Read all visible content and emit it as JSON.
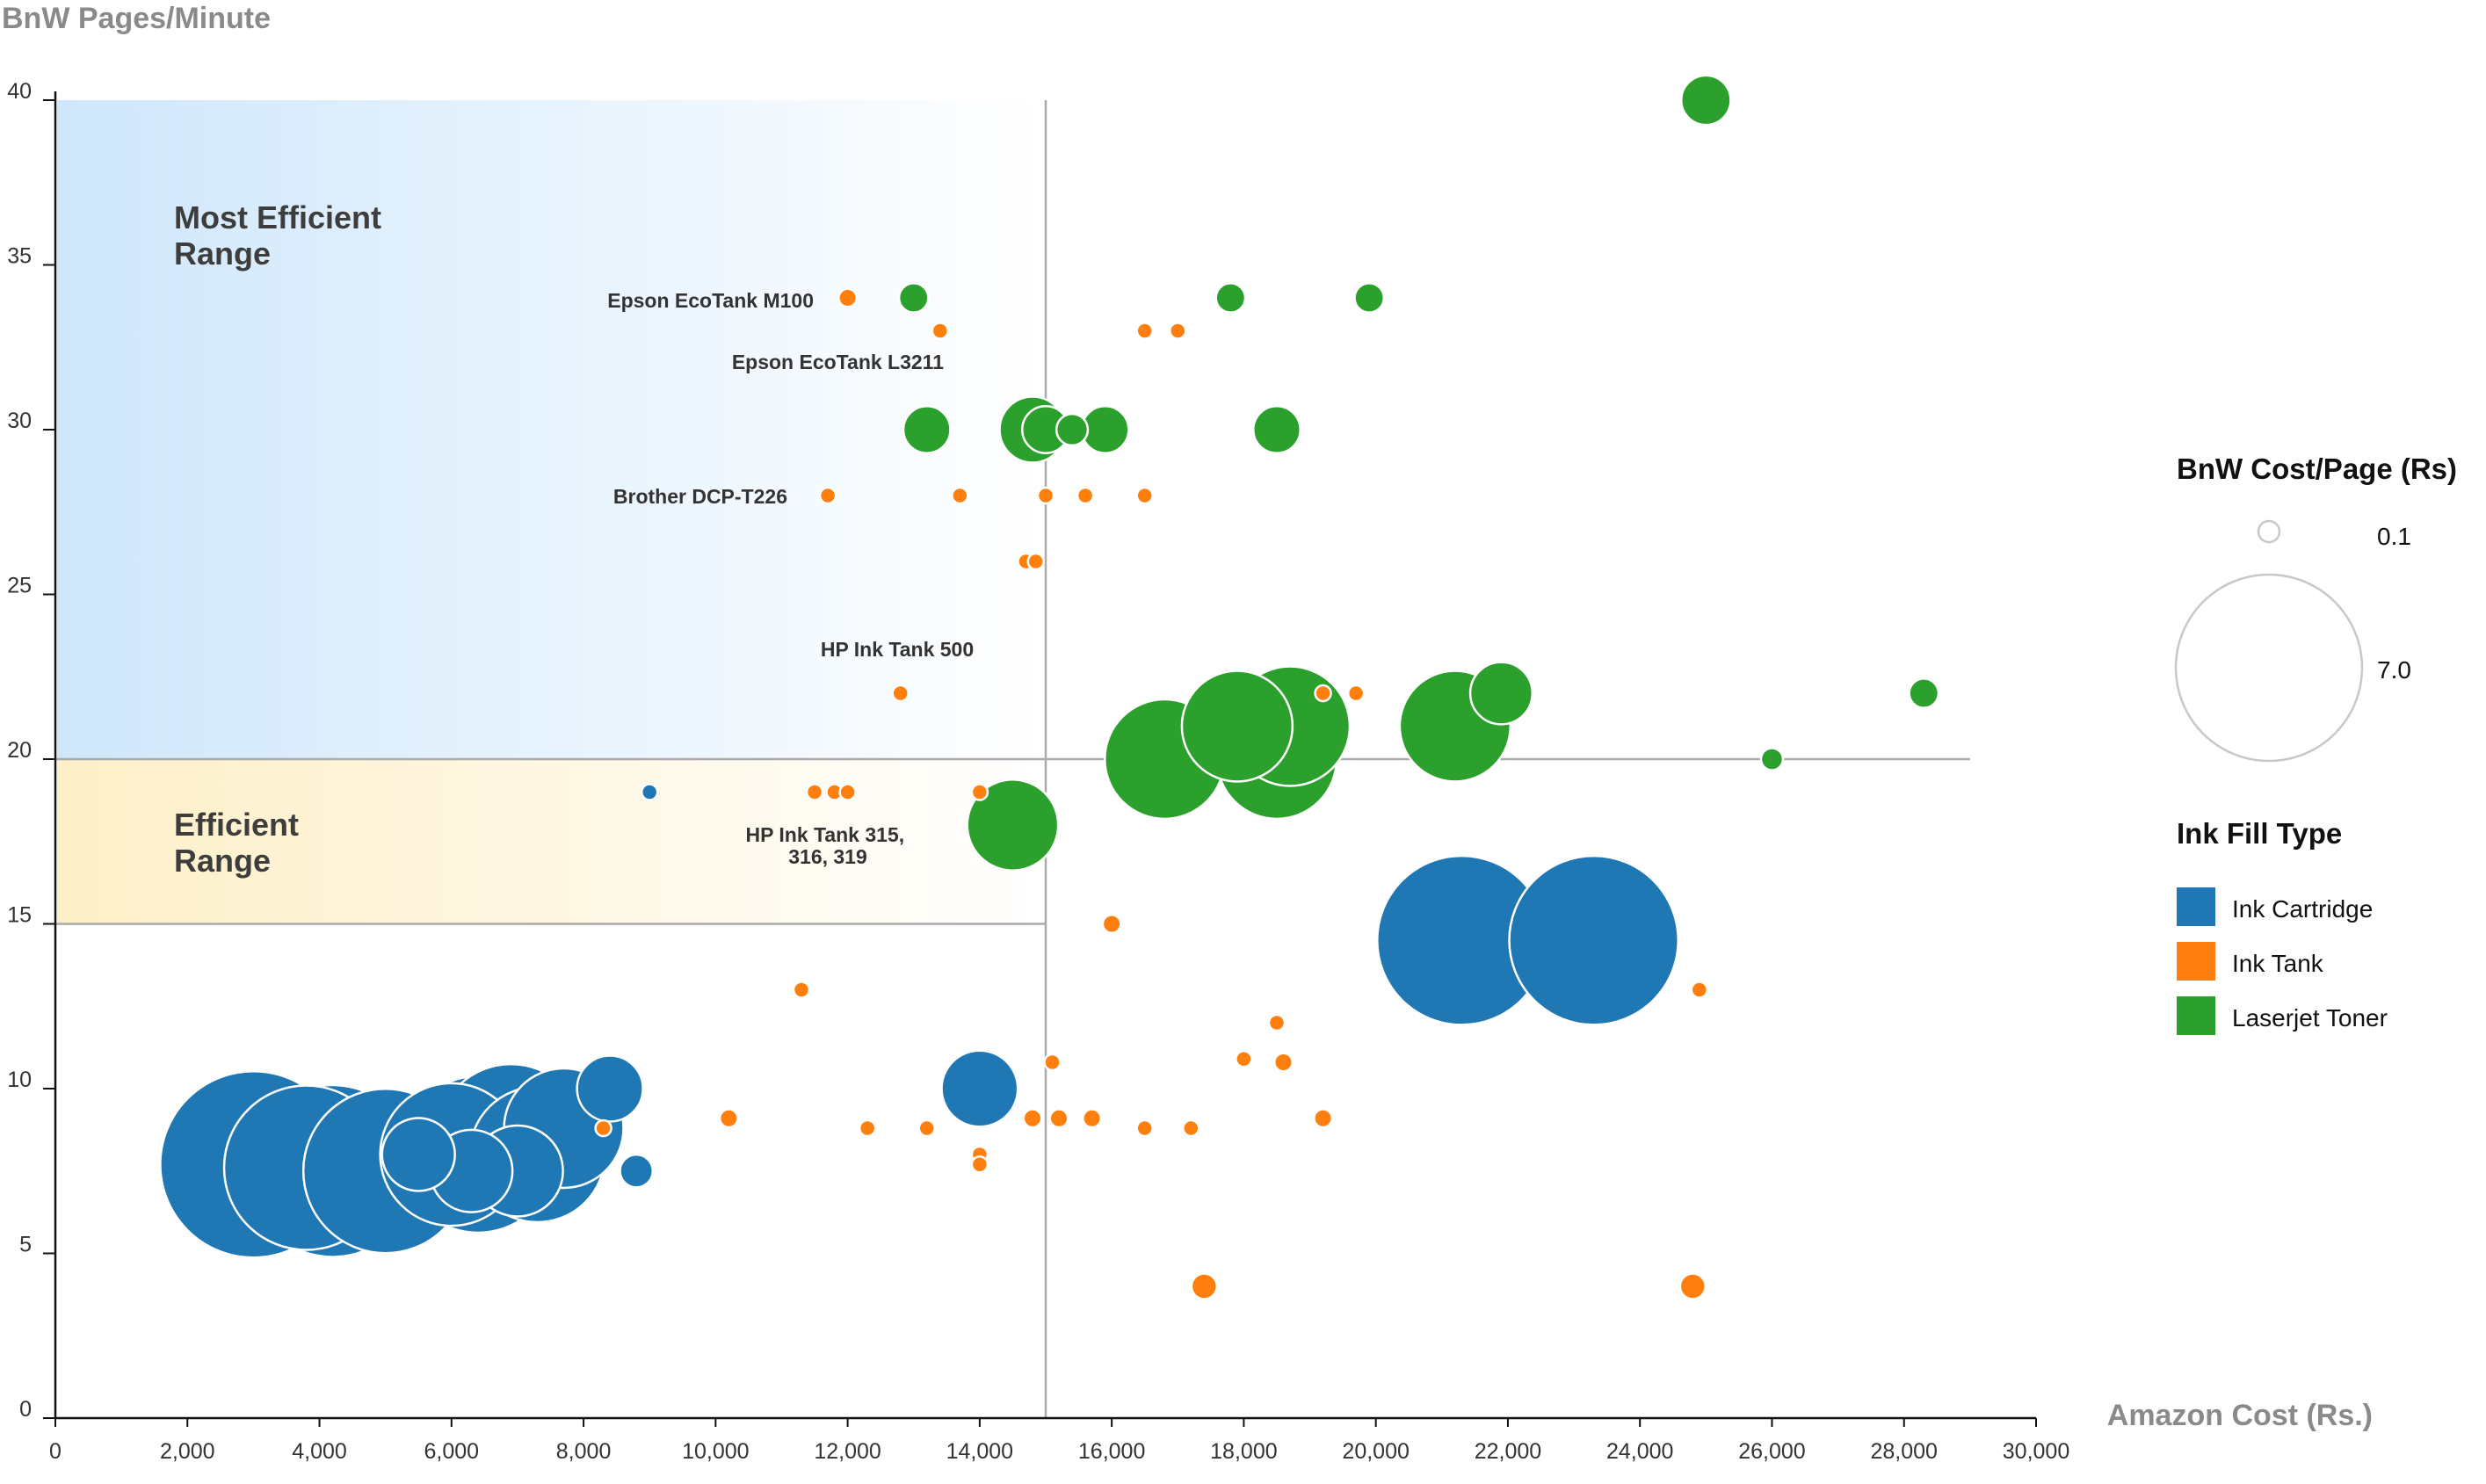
{
  "chart_data": {
    "type": "scatter",
    "subtype": "bubble",
    "ylabel": "BnW Pages/Minute",
    "xlabel": "Amazon Cost (Rs.)",
    "xlim": [
      0,
      30000
    ],
    "ylim": [
      0,
      40
    ],
    "x_ticks": [
      "0",
      "2,000",
      "4,000",
      "6,000",
      "8,000",
      "10,000",
      "12,000",
      "14,000",
      "16,000",
      "18,000",
      "20,000",
      "22,000",
      "24,000",
      "26,000",
      "28,000",
      "30,000"
    ],
    "y_ticks": [
      "0",
      "5",
      "10",
      "15",
      "20",
      "25",
      "30",
      "35",
      "40"
    ],
    "grid": false,
    "colors": {
      "Ink Cartridge": "#1f77b4",
      "Ink Tank": "#ff7f0e",
      "Laserjet Toner": "#2ca02c"
    },
    "regions": [
      {
        "label": "Most Efficient Range",
        "x": [
          0,
          15000
        ],
        "y": [
          20,
          40
        ],
        "color": "#cfe8fb"
      },
      {
        "label": "Efficient Range",
        "x": [
          0,
          15000
        ],
        "y": [
          15,
          20
        ],
        "color": "#fdf0cc"
      }
    ],
    "reference_lines": {
      "x": 15000,
      "y_max": 40,
      "y": 20,
      "x_max": 29000
    },
    "annotations": [
      {
        "text": "Epson EcoTank M100",
        "x": 12000,
        "y": 34
      },
      {
        "text": "Epson EcoTank L3211",
        "x": 13300,
        "y": 33
      },
      {
        "text": "Brother DCP-T226",
        "x": 11700,
        "y": 28
      },
      {
        "text": "HP Ink Tank 500",
        "x": 12800,
        "y": 22
      },
      {
        "text": "HP Ink Tank 315,",
        "text2": "316, 319",
        "x": 11800,
        "y": 19
      }
    ],
    "size_legend": {
      "title": "BnW Cost/Page (Rs)",
      "entries": [
        {
          "label": "0.1",
          "value": 0.1
        },
        {
          "label": "7.0",
          "value": 7.0
        }
      ]
    },
    "legend_title": "Ink Fill Type",
    "legend_position": "right",
    "series": [
      {
        "name": "Ink Cartridge",
        "points": [
          {
            "x": 3000,
            "y": 7.7,
            "size": 7.0
          },
          {
            "x": 3800,
            "y": 7.6,
            "size": 5.5
          },
          {
            "x": 4200,
            "y": 7.5,
            "size": 6.0
          },
          {
            "x": 5000,
            "y": 7.5,
            "size": 5.5
          },
          {
            "x": 6000,
            "y": 8.0,
            "size": 4.2
          },
          {
            "x": 6400,
            "y": 8.0,
            "size": 5.0
          },
          {
            "x": 6900,
            "y": 8.5,
            "size": 4.5
          },
          {
            "x": 7300,
            "y": 8.0,
            "size": 3.8
          },
          {
            "x": 7700,
            "y": 8.8,
            "size": 3.0
          },
          {
            "x": 7000,
            "y": 7.5,
            "size": 1.8
          },
          {
            "x": 6300,
            "y": 7.5,
            "size": 1.5
          },
          {
            "x": 5500,
            "y": 8.0,
            "size": 1.2
          },
          {
            "x": 8400,
            "y": 10.0,
            "size": 1.0
          },
          {
            "x": 8800,
            "y": 7.5,
            "size": 0.3
          },
          {
            "x": 9000,
            "y": 19.0,
            "size": 0.1
          },
          {
            "x": 14000,
            "y": 10.0,
            "size": 1.3
          },
          {
            "x": 21300,
            "y": 14.5,
            "size": 5.8
          },
          {
            "x": 23300,
            "y": 14.5,
            "size": 5.8
          }
        ]
      },
      {
        "name": "Ink Tank",
        "points": [
          {
            "x": 12000,
            "y": 34,
            "size": 0.12
          },
          {
            "x": 13400,
            "y": 33,
            "size": 0.1
          },
          {
            "x": 16500,
            "y": 33,
            "size": 0.1
          },
          {
            "x": 17000,
            "y": 33,
            "size": 0.1
          },
          {
            "x": 11700,
            "y": 28,
            "size": 0.1
          },
          {
            "x": 13700,
            "y": 28,
            "size": 0.1
          },
          {
            "x": 15000,
            "y": 28,
            "size": 0.1
          },
          {
            "x": 15600,
            "y": 28,
            "size": 0.1
          },
          {
            "x": 16500,
            "y": 28,
            "size": 0.1
          },
          {
            "x": 14700,
            "y": 26,
            "size": 0.1
          },
          {
            "x": 14850,
            "y": 26,
            "size": 0.1
          },
          {
            "x": 12800,
            "y": 22,
            "size": 0.1
          },
          {
            "x": 19200,
            "y": 22,
            "size": 0.1
          },
          {
            "x": 19700,
            "y": 22,
            "size": 0.1
          },
          {
            "x": 11500,
            "y": 19,
            "size": 0.1
          },
          {
            "x": 11800,
            "y": 19,
            "size": 0.1
          },
          {
            "x": 12000,
            "y": 19,
            "size": 0.1
          },
          {
            "x": 14000,
            "y": 19,
            "size": 0.1
          },
          {
            "x": 16000,
            "y": 15,
            "size": 0.12
          },
          {
            "x": 11300,
            "y": 13,
            "size": 0.1
          },
          {
            "x": 24900,
            "y": 13,
            "size": 0.1
          },
          {
            "x": 18500,
            "y": 12,
            "size": 0.1
          },
          {
            "x": 15100,
            "y": 10.8,
            "size": 0.1
          },
          {
            "x": 18000,
            "y": 10.9,
            "size": 0.1
          },
          {
            "x": 18600,
            "y": 10.8,
            "size": 0.12
          },
          {
            "x": 8300,
            "y": 8.8,
            "size": 0.1
          },
          {
            "x": 10200,
            "y": 9.1,
            "size": 0.12
          },
          {
            "x": 12300,
            "y": 8.8,
            "size": 0.1
          },
          {
            "x": 13200,
            "y": 8.8,
            "size": 0.1
          },
          {
            "x": 14800,
            "y": 9.1,
            "size": 0.12
          },
          {
            "x": 15200,
            "y": 9.1,
            "size": 0.12
          },
          {
            "x": 15700,
            "y": 9.1,
            "size": 0.12
          },
          {
            "x": 16500,
            "y": 8.8,
            "size": 0.1
          },
          {
            "x": 17200,
            "y": 8.8,
            "size": 0.1
          },
          {
            "x": 19200,
            "y": 9.1,
            "size": 0.12
          },
          {
            "x": 14000,
            "y": 8.0,
            "size": 0.1
          },
          {
            "x": 14000,
            "y": 7.7,
            "size": 0.1
          },
          {
            "x": 17400,
            "y": 4.0,
            "size": 0.2
          },
          {
            "x": 24800,
            "y": 4.0,
            "size": 0.2
          }
        ]
      },
      {
        "name": "Laserjet Toner",
        "points": [
          {
            "x": 25000,
            "y": 40,
            "size": 0.6
          },
          {
            "x": 13000,
            "y": 34,
            "size": 0.25
          },
          {
            "x": 17800,
            "y": 34,
            "size": 0.25
          },
          {
            "x": 19900,
            "y": 34,
            "size": 0.25
          },
          {
            "x": 13200,
            "y": 30,
            "size": 0.55
          },
          {
            "x": 14800,
            "y": 30,
            "size": 1.0
          },
          {
            "x": 15000,
            "y": 30,
            "size": 0.55
          },
          {
            "x": 15400,
            "y": 30,
            "size": 0.28
          },
          {
            "x": 15900,
            "y": 30,
            "size": 0.55
          },
          {
            "x": 18500,
            "y": 30,
            "size": 0.55
          },
          {
            "x": 14500,
            "y": 18,
            "size": 1.8
          },
          {
            "x": 16800,
            "y": 20,
            "size": 3.0
          },
          {
            "x": 18500,
            "y": 20,
            "size": 3.0
          },
          {
            "x": 18700,
            "y": 21,
            "size": 3.0
          },
          {
            "x": 17900,
            "y": 21,
            "size": 2.6
          },
          {
            "x": 21200,
            "y": 21,
            "size": 2.6
          },
          {
            "x": 21900,
            "y": 22,
            "size": 0.9
          },
          {
            "x": 28300,
            "y": 22,
            "size": 0.25
          },
          {
            "x": 26000,
            "y": 20,
            "size": 0.16
          }
        ]
      }
    ]
  }
}
